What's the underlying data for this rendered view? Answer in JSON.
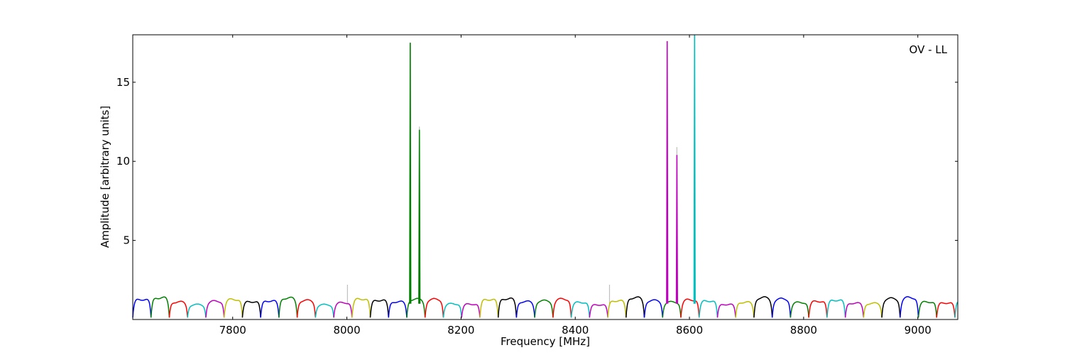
{
  "chart_data": {
    "type": "line",
    "annotation": "OV - LL",
    "xlabel": "Frequency [MHz]",
    "ylabel": "Amplitude [arbitrary units]",
    "xlim": [
      7625,
      9070
    ],
    "ylim": [
      0,
      18
    ],
    "xticks": [
      7800,
      8000,
      8200,
      8400,
      8600,
      8800,
      9000
    ],
    "xtick_labels": [
      "7800",
      "8000",
      "8200",
      "8400",
      "8600",
      "8800",
      "9000"
    ],
    "yticks": [
      5,
      10,
      15
    ],
    "ytick_labels": [
      "5",
      "10",
      "15"
    ],
    "grid": false,
    "legend": "none",
    "channel_width_mhz": 32,
    "channel_start_mhz": 7625,
    "channel_colors": [
      "#0000ff",
      "#008000",
      "#ff0000",
      "#00bfbf",
      "#bf00bf",
      "#bfbf00",
      "#000000"
    ],
    "background_color": "#c0c0c0",
    "series": [
      {
        "color": "#008000",
        "x": [
          8110,
          8111,
          8112
        ],
        "y": [
          1.0,
          17.5,
          1.0
        ]
      },
      {
        "color": "#008000",
        "x": [
          8126,
          8127,
          8128
        ],
        "y": [
          1.0,
          12.0,
          1.0
        ]
      },
      {
        "color": "#bf00bf",
        "x": [
          8560,
          8561,
          8562
        ],
        "y": [
          1.0,
          17.6,
          1.0
        ]
      },
      {
        "color": "#bf00bf",
        "x": [
          8577,
          8578,
          8579
        ],
        "y": [
          1.0,
          10.4,
          1.0
        ]
      },
      {
        "color": "#00bfbf",
        "x": [
          8608,
          8609,
          8610
        ],
        "y": [
          1.0,
          18.0,
          1.0
        ]
      }
    ],
    "background_spikes": [
      {
        "x": 8001,
        "y": 2.2
      },
      {
        "x": 8127,
        "y": 12.2
      },
      {
        "x": 8460,
        "y": 2.2
      },
      {
        "x": 8578,
        "y": 10.9
      }
    ]
  }
}
